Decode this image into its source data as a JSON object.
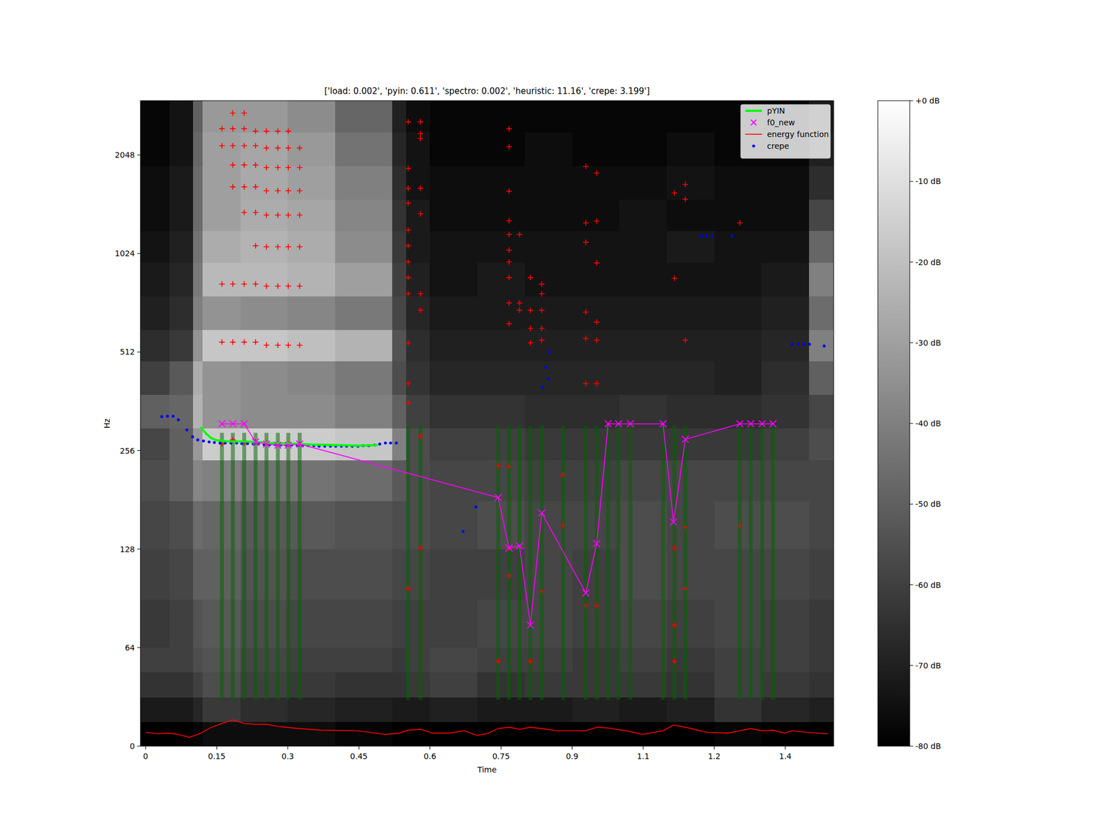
{
  "chart_data": {
    "type": "spectrogram",
    "title": "['load: 0.002', 'pyin: 0.611', 'spectro: 0.002', 'heuristic: 11.16', 'crepe: 3.199']",
    "x_label": "Time",
    "y_label": "Hz",
    "xlim": [
      -0.011,
      1.452
    ],
    "ylim": [
      0,
      3000
    ],
    "xticks": [
      0,
      0.15,
      0.3,
      0.45,
      0.6,
      0.75,
      0.9,
      {
        "value": 1.05,
        "label": "1.1"
      },
      1.2,
      {
        "value": 1.35,
        "label": "1.4"
      }
    ],
    "yticks": [
      0,
      64,
      128,
      256,
      512,
      1024,
      2048
    ],
    "log": "y",
    "legend": "upper right",
    "spectrogram": {
      "x": [
        -0.011,
        0.05,
        0.1,
        0.12,
        0.2,
        0.3,
        0.4,
        0.52,
        0.55,
        0.6,
        0.7,
        0.8,
        0.9,
        1.0,
        1.1,
        1.2,
        1.3,
        1.4,
        1.452
      ],
      "y": [
        0,
        16,
        32,
        48,
        64,
        90,
        128,
        180,
        240,
        300,
        380,
        480,
        600,
        760,
        960,
        1200,
        1500,
        1900,
        2400,
        3000
      ],
      "cells": [
        [
          -80,
          -80,
          -78,
          -76,
          -76,
          -76,
          -78,
          -80,
          -80,
          -80,
          -80,
          -80,
          -80,
          -80,
          -80,
          -78,
          -80,
          -80
        ],
        [
          -72,
          -72,
          -68,
          -62,
          -66,
          -68,
          -70,
          -72,
          -72,
          -70,
          -72,
          -72,
          -70,
          -72,
          -70,
          -64,
          -68,
          -70
        ],
        [
          -64,
          -64,
          -60,
          -56,
          -60,
          -62,
          -64,
          -64,
          -62,
          -60,
          -64,
          -62,
          -62,
          -62,
          -64,
          -60,
          -62,
          -64
        ],
        [
          -60,
          -60,
          -56,
          -54,
          -58,
          -60,
          -60,
          -62,
          -60,
          -58,
          -60,
          -60,
          -62,
          -60,
          -62,
          -60,
          -60,
          -62
        ],
        [
          -62,
          -60,
          -54,
          -52,
          -56,
          -58,
          -58,
          -60,
          -60,
          -60,
          -58,
          -58,
          -60,
          -58,
          -60,
          -58,
          -60,
          -62
        ],
        [
          -60,
          -58,
          -50,
          -50,
          -54,
          -56,
          -56,
          -58,
          -58,
          -60,
          -60,
          -58,
          -60,
          -56,
          -58,
          -58,
          -58,
          -60
        ],
        [
          -58,
          -56,
          -46,
          -48,
          -52,
          -52,
          -54,
          -56,
          -56,
          -58,
          -56,
          -58,
          -58,
          -56,
          -58,
          -56,
          -56,
          -58
        ],
        [
          -56,
          -50,
          -38,
          -40,
          -44,
          -44,
          -46,
          -52,
          -56,
          -58,
          -58,
          -60,
          -60,
          -58,
          -58,
          -58,
          -58,
          -58
        ],
        [
          -58,
          -50,
          -32,
          -16,
          -15,
          -16,
          -18,
          -40,
          -56,
          -60,
          -60,
          -62,
          -62,
          -62,
          -62,
          -62,
          -60,
          -56
        ],
        [
          -50,
          -48,
          -24,
          -34,
          -36,
          -36,
          -40,
          -50,
          -60,
          -64,
          -64,
          -66,
          -66,
          -64,
          -66,
          -66,
          -64,
          -58
        ],
        [
          -60,
          -52,
          -26,
          -34,
          -36,
          -38,
          -42,
          -56,
          -64,
          -68,
          -68,
          -68,
          -68,
          -68,
          -68,
          -70,
          -66,
          -50
        ],
        [
          -66,
          -62,
          -34,
          -18,
          -18,
          -20,
          -24,
          -54,
          -66,
          -70,
          -70,
          -70,
          -70,
          -70,
          -70,
          -70,
          -68,
          -40
        ],
        [
          -70,
          -66,
          -40,
          -34,
          -36,
          -38,
          -42,
          -58,
          -68,
          -72,
          -72,
          -72,
          -72,
          -72,
          -72,
          -72,
          -70,
          -46
        ],
        [
          -72,
          -68,
          -42,
          -22,
          -22,
          -24,
          -30,
          -60,
          -70,
          -74,
          -72,
          -74,
          -74,
          -74,
          -74,
          -74,
          -72,
          -40
        ],
        [
          -74,
          -70,
          -44,
          -26,
          -24,
          -26,
          -36,
          -62,
          -72,
          -74,
          -74,
          -74,
          -74,
          -74,
          -72,
          -74,
          -74,
          -48
        ],
        [
          -76,
          -72,
          -46,
          -30,
          -26,
          -28,
          -38,
          -64,
          -72,
          -76,
          -76,
          -76,
          -76,
          -74,
          -76,
          -76,
          -76,
          -58
        ],
        [
          -76,
          -72,
          -46,
          -30,
          -27,
          -30,
          -40,
          -66,
          -74,
          -76,
          -76,
          -76,
          -76,
          -76,
          -74,
          -76,
          -76,
          -66
        ],
        [
          -78,
          -74,
          -48,
          -30,
          -28,
          -32,
          -44,
          -68,
          -74,
          -78,
          -78,
          -76,
          -78,
          -78,
          -76,
          -78,
          -78,
          -70
        ],
        [
          -78,
          -74,
          -50,
          -32,
          -32,
          -36,
          -48,
          -70,
          -76,
          -78,
          -78,
          -78,
          -78,
          -78,
          -78,
          -78,
          -78,
          -72
        ]
      ]
    },
    "colorbar": {
      "range": [
        -80,
        0
      ],
      "ticks": [
        {
          "value": 0,
          "label": "+0 dB"
        },
        {
          "value": -10,
          "label": "-10 dB"
        },
        {
          "value": -20,
          "label": "-20 dB"
        },
        {
          "value": -30,
          "label": "-30 dB"
        },
        {
          "value": -40,
          "label": "-40 dB"
        },
        {
          "value": -50,
          "label": "-50 dB"
        },
        {
          "value": -60,
          "label": "-60 dB"
        },
        {
          "value": -70,
          "label": "-70 dB"
        },
        {
          "value": -80,
          "label": "-80 dB"
        }
      ]
    },
    "series": [
      {
        "name": "pYIN",
        "type": "line",
        "color": "#00ff00",
        "x": [
          0.116,
          0.128,
          0.139,
          0.151,
          0.174,
          0.2,
          0.232,
          0.26,
          0.3,
          0.35,
          0.4,
          0.45,
          0.49
        ],
        "values": [
          302,
          288,
          279,
          275,
          273,
          273,
          272,
          270,
          269,
          267,
          266,
          265,
          266
        ]
      },
      {
        "name": "f0_new",
        "type": "line",
        "color": "#ff00ff",
        "marker": "x",
        "x": [
          0.161,
          0.184,
          0.208,
          0.232,
          0.255,
          0.279,
          0.301,
          0.325,
          0.744,
          0.767,
          0.789,
          0.812,
          0.836,
          0.929,
          0.952,
          0.976,
          0.998,
          1.023,
          1.092,
          1.114,
          1.139,
          1.254,
          1.277,
          1.301,
          1.324
        ],
        "values": [
          309,
          309,
          309,
          272,
          268,
          266,
          266,
          268,
          184,
          129,
          131,
          75,
          165,
          94,
          133,
          309,
          309,
          309,
          309,
          155,
          277,
          309,
          309,
          309,
          309
        ]
      },
      {
        "name": "energy function",
        "type": "line",
        "color": "#ff0000",
        "x": [
          0,
          0.024,
          0.047,
          0.069,
          0.092,
          0.114,
          0.139,
          0.161,
          0.184,
          0.208,
          0.232,
          0.255,
          0.279,
          0.325,
          0.37,
          0.446,
          0.506,
          0.536,
          0.554,
          0.581,
          0.604,
          0.642,
          0.672,
          0.699,
          0.72,
          0.744,
          0.767,
          0.789,
          0.812,
          0.836,
          0.867,
          0.929,
          0.952,
          0.976,
          1.023,
          1.048,
          1.092,
          1.114,
          1.139,
          1.184,
          1.229,
          1.254,
          1.277,
          1.301,
          1.324,
          1.349,
          1.364,
          1.395,
          1.44
        ],
        "values": [
          9.0,
          8.1,
          8.5,
          7.6,
          5.7,
          8.1,
          12.3,
          14.7,
          17.1,
          14.7,
          14.2,
          14.2,
          12.8,
          11.4,
          10.4,
          10.0,
          7.6,
          8.5,
          10.4,
          10.9,
          8.5,
          8.5,
          10.0,
          7.1,
          8.1,
          11.4,
          12.3,
          10.9,
          12.3,
          11.4,
          10.0,
          10.0,
          12.3,
          11.8,
          9.5,
          7.6,
          10.0,
          13.7,
          12.3,
          9.0,
          8.5,
          10.0,
          11.4,
          10.0,
          10.4,
          8.5,
          10.0,
          9.0,
          8.1
        ]
      },
      {
        "name": "crepe",
        "type": "scatter",
        "color": "#0000ff",
        "marker": "dot",
        "x": [
          0.034,
          0.046,
          0.058,
          0.069,
          0.087,
          0.099,
          0.11,
          0.122,
          0.134,
          0.145,
          0.157,
          0.168,
          0.18,
          0.192,
          0.203,
          0.215,
          0.227,
          0.238,
          0.25,
          0.262,
          0.273,
          0.285,
          0.296,
          0.308,
          0.32,
          0.331,
          0.343,
          0.355,
          0.366,
          0.378,
          0.39,
          0.401,
          0.413,
          0.424,
          0.436,
          0.448,
          0.459,
          0.471,
          0.483,
          0.494,
          0.506,
          0.517,
          0.529,
          0.67,
          0.697,
          0.838,
          0.845,
          0.85,
          0.852,
          1.173,
          1.184,
          1.196,
          1.238,
          1.364,
          1.377,
          1.389,
          1.401,
          1.432
        ],
        "values": [
          325,
          326,
          326,
          318,
          296,
          282,
          276,
          274,
          272,
          271,
          270,
          270,
          270,
          270,
          269,
          269,
          268,
          268,
          267,
          267,
          267,
          266,
          266,
          266,
          265,
          265,
          265,
          265,
          264,
          264,
          264,
          264,
          264,
          264,
          264,
          264,
          265,
          265,
          266,
          268,
          270,
          270,
          270,
          145,
          172,
          399,
          459,
          424,
          512,
          1159,
          1159,
          1159,
          1159,
          541,
          541,
          541,
          541,
          534
        ]
      },
      {
        "type": "scatter",
        "color": "#ff0000",
        "marker": "plus",
        "x": [
          0.161,
          0.161,
          0.161,
          0.161,
          0.161,
          0.184,
          0.184,
          0.184,
          0.184,
          0.184,
          0.184,
          0.184,
          0.184,
          0.208,
          0.208,
          0.208,
          0.208,
          0.208,
          0.208,
          0.208,
          0.208,
          0.208,
          0.232,
          0.232,
          0.232,
          0.232,
          0.232,
          0.232,
          0.232,
          0.232,
          0.232,
          0.255,
          0.255,
          0.255,
          0.255,
          0.255,
          0.255,
          0.255,
          0.255,
          0.255,
          0.279,
          0.279,
          0.279,
          0.279,
          0.279,
          0.279,
          0.279,
          0.279,
          0.279,
          0.301,
          0.301,
          0.301,
          0.301,
          0.301,
          0.301,
          0.301,
          0.301,
          0.301,
          0.325,
          0.325,
          0.325,
          0.325,
          0.325,
          0.325,
          0.325,
          0.325,
          0.554,
          0.554,
          0.554,
          0.554,
          0.554,
          0.554,
          0.554,
          0.554,
          0.554,
          0.554,
          0.554,
          0.554,
          0.554,
          0.58,
          0.58,
          0.58,
          0.58,
          0.58,
          0.58,
          0.58,
          0.58,
          0.58,
          0.744,
          0.744,
          0.767,
          0.767,
          0.767,
          0.767,
          0.767,
          0.767,
          0.767,
          0.767,
          0.767,
          0.767,
          0.767,
          0.767,
          0.767,
          0.789,
          0.789,
          0.789,
          0.812,
          0.812,
          0.812,
          0.812,
          0.812,
          0.836,
          0.836,
          0.836,
          0.836,
          0.836,
          0.836,
          0.881,
          0.881,
          0.929,
          0.929,
          0.929,
          0.929,
          0.929,
          0.929,
          0.929,
          0.952,
          0.952,
          0.952,
          0.952,
          0.952,
          0.952,
          0.952,
          1.116,
          1.116,
          1.116,
          1.116,
          1.116,
          1.139,
          1.139,
          1.139,
          1.139,
          1.139,
          1.254,
          1.254
        ],
        "values": [
          268,
          549,
          826,
          2185,
          2463,
          276,
          549,
          826,
          1636,
          1909,
          2185,
          2463,
          2749,
          270,
          549,
          826,
          1367,
          1636,
          1909,
          2185,
          2463,
          2749,
          272,
          549,
          826,
          1081,
          1367,
          1636,
          1909,
          2185,
          2420,
          270,
          537,
          814,
          1073,
          1342,
          1592,
          1875,
          2150,
          2420,
          268,
          537,
          814,
          1073,
          1342,
          1592,
          1875,
          2150,
          2420,
          268,
          537,
          814,
          1073,
          1342,
          1592,
          1875,
          2150,
          2420,
          268,
          537,
          814,
          1073,
          1342,
          1592,
          1875,
          2150,
          97,
          358,
          410,
          546,
          771,
          864,
          965,
          1081,
          1208,
          1459,
          1620,
          1863,
          2585,
          129,
          283,
          687,
          771,
          1354,
          1620,
          2300,
          2379,
          2585,
          55,
          230,
          106,
          129,
          229,
          625,
          723,
          864,
          965,
          1048,
          1170,
          1289,
          1587,
          2170,
          2463,
          687,
          723,
          1170,
          55,
          546,
          605,
          687,
          864,
          95,
          556,
          605,
          687,
          771,
          825,
          151,
          216,
          86,
          410,
          563,
          678,
          1108,
          1270,
          1890,
          86,
          410,
          556,
          632,
          958,
          1286,
          1804,
          55,
          75,
          129,
          860,
          1567,
          97,
          149,
          556,
          1499,
          1664,
          151,
          1270
        ]
      },
      {
        "type": "vlines",
        "color": "#006400",
        "x": [
          0.161,
          0.184,
          0.208,
          0.232,
          0.255,
          0.279,
          0.301,
          0.325,
          0.554,
          0.58,
          0.744,
          0.767,
          0.789,
          0.812,
          0.836,
          0.881,
          0.929,
          0.952,
          0.976,
          0.998,
          1.023,
          1.092,
          1.116,
          1.139,
          1.254,
          1.277,
          1.301,
          1.324
        ],
        "values": [
          290,
          290,
          290,
          290,
          290,
          290,
          290,
          290,
          305,
          305,
          305,
          305,
          305,
          305,
          305,
          305,
          305,
          305,
          305,
          305,
          305,
          305,
          305,
          305,
          305,
          305,
          305,
          305
        ],
        "base": [
          30,
          30,
          30,
          30,
          30,
          30,
          30,
          30,
          30,
          30,
          30,
          30,
          30,
          30,
          30,
          30,
          30,
          30,
          30,
          30,
          30,
          30,
          30,
          30,
          30,
          30,
          30,
          30
        ]
      }
    ]
  }
}
